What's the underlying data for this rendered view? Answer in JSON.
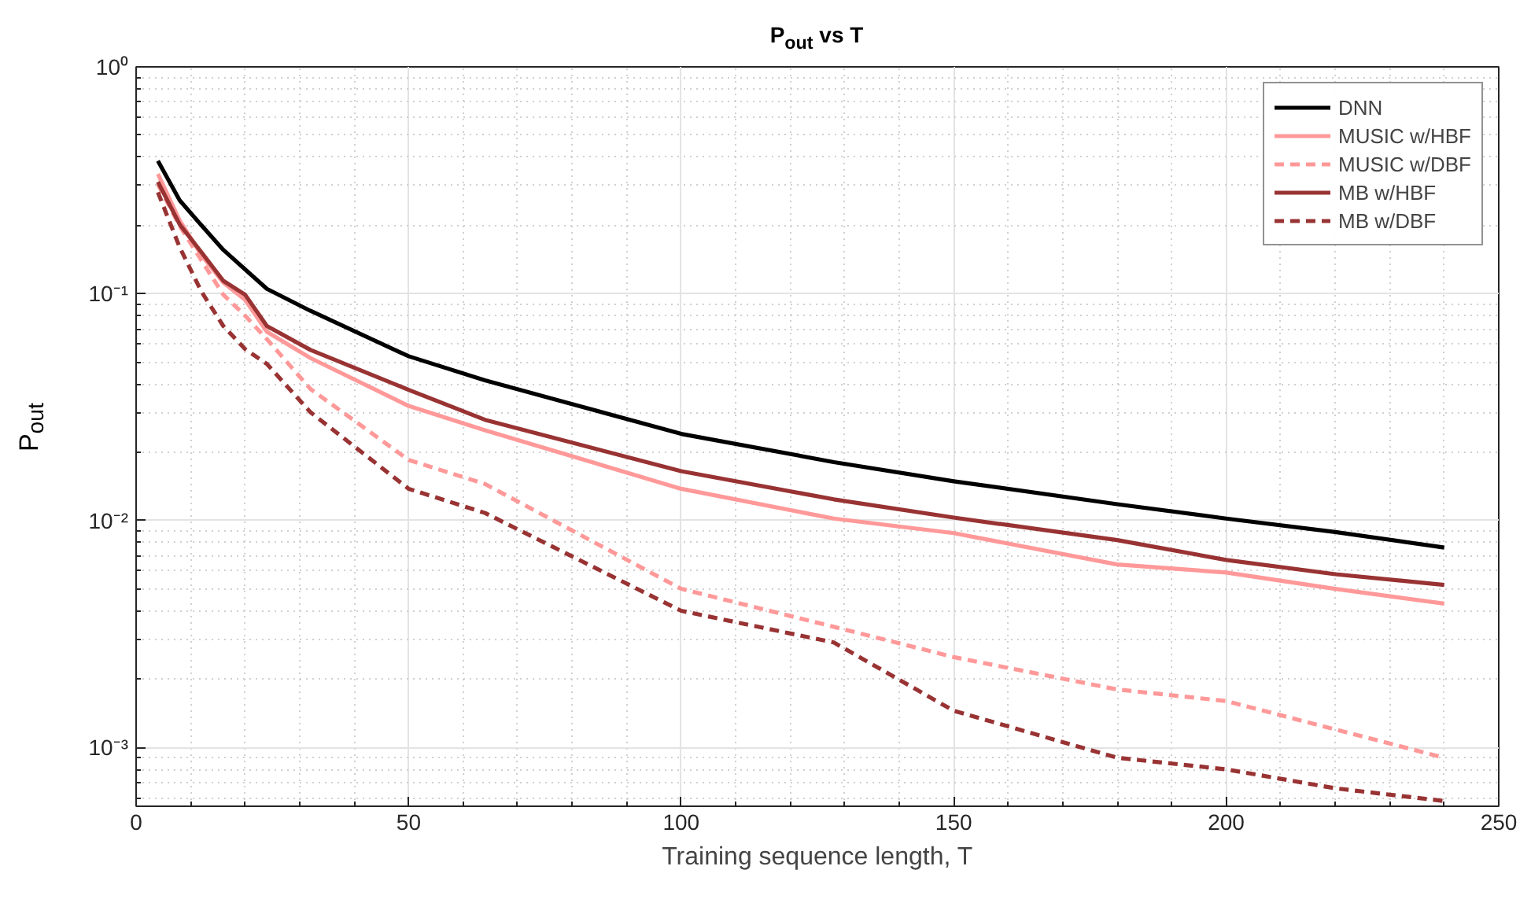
{
  "chart_data": {
    "type": "line",
    "title": "P$_{out}$ vs T",
    "xlabel": "Training sequence length, T",
    "ylabel": "P$_{out}$",
    "x": [
      4,
      8,
      12,
      16,
      20,
      24,
      32,
      50,
      64,
      100,
      128,
      150,
      180,
      200,
      220,
      240
    ],
    "series": [
      {
        "name": "DNN",
        "color": "#000000",
        "line_style": "solid",
        "values": [
          0.385,
          0.258,
          0.2,
          0.156,
          0.128,
          0.105,
          0.084,
          0.053,
          0.0415,
          0.0241,
          0.0181,
          0.0149,
          0.0118,
          0.0102,
          0.0089,
          0.0076
        ]
      },
      {
        "name": "MUSIC w/HBF",
        "color": "#ff9999",
        "line_style": "solid",
        "values": [
          0.337,
          0.21,
          0.148,
          0.112,
          0.094,
          0.068,
          0.052,
          0.032,
          0.025,
          0.0138,
          0.0102,
          0.0088,
          0.0064,
          0.0059,
          0.005,
          0.0043
        ]
      },
      {
        "name": "MUSIC w/DBF",
        "color": "#ff9999",
        "line_style": "dashed",
        "values": [
          0.303,
          0.199,
          0.14,
          0.099,
          0.08,
          0.063,
          0.038,
          0.0185,
          0.0145,
          0.005,
          0.0034,
          0.0025,
          0.0018,
          0.0016,
          0.0012,
          0.0009
        ]
      },
      {
        "name": "MB w/HBF",
        "color": "#993333",
        "line_style": "solid",
        "values": [
          0.311,
          0.202,
          0.152,
          0.114,
          0.099,
          0.072,
          0.0565,
          0.0377,
          0.0278,
          0.0165,
          0.0124,
          0.0103,
          0.0082,
          0.0067,
          0.0058,
          0.0052
        ]
      },
      {
        "name": "MB w/DBF",
        "color": "#993333",
        "line_style": "dashed",
        "values": [
          0.28,
          0.16,
          0.102,
          0.072,
          0.057,
          0.049,
          0.03,
          0.0138,
          0.0108,
          0.004,
          0.0029,
          0.00145,
          0.0009,
          0.0008,
          0.00066,
          0.00058
        ]
      }
    ],
    "xlim": [
      0,
      250
    ],
    "xticks": [
      0,
      50,
      100,
      150,
      200,
      250
    ],
    "ylim": [
      0.00055,
      1
    ],
    "yticks": [
      {
        "value": 0.001,
        "label": "10⁻³"
      },
      {
        "value": 0.01,
        "label": "10⁻²"
      },
      {
        "value": 0.1,
        "label": "10⁻¹"
      },
      {
        "value": 1,
        "label": "10⁰"
      }
    ],
    "log": "y",
    "grid": true,
    "legend": "top right"
  }
}
